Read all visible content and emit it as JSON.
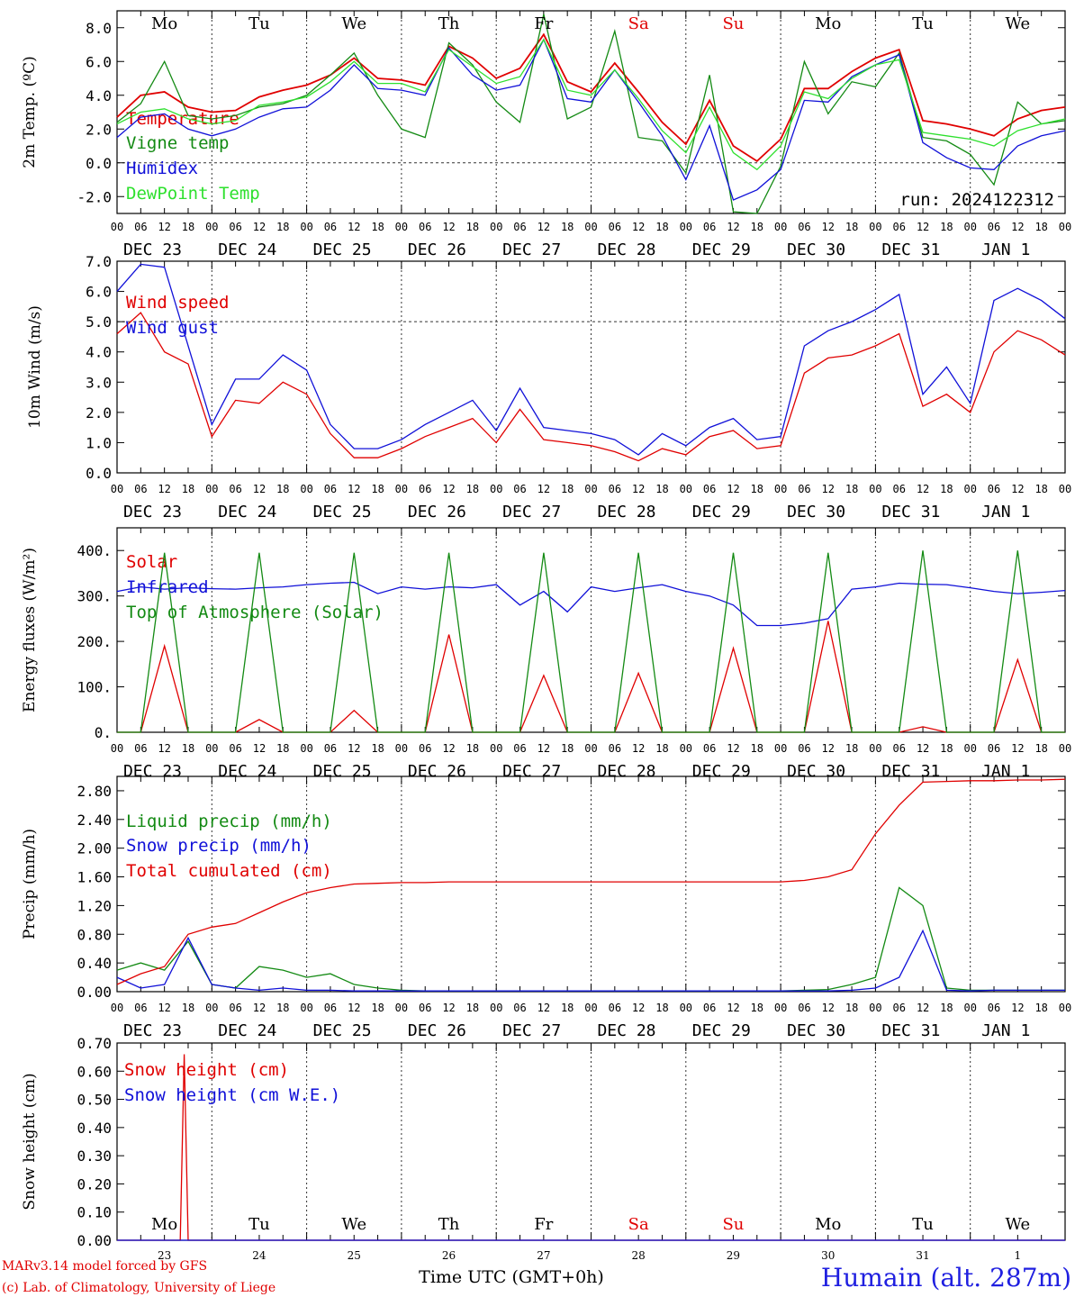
{
  "location": "Humain (alt. 287m)",
  "credit_model": "MARv3.14 model forced by GFS",
  "credit_lab": "(c) Lab. of Climatology, University of Liege",
  "xaxis_title": "Time UTC (GMT+0h)",
  "run_label": "run: 2024122312",
  "hour_ticks": [
    "00",
    "06",
    "12",
    "18"
  ],
  "end_tick": "00",
  "dates": [
    "DEC 23",
    "DEC 24",
    "DEC 25",
    "DEC 26",
    "DEC 27",
    "DEC 28",
    "DEC 29",
    "DEC 30",
    "DEC 31",
    "JAN  1"
  ],
  "bottom_dates": [
    "23",
    "24",
    "25",
    "26",
    "27",
    "28",
    "29",
    "30",
    "31",
    "1"
  ],
  "days": [
    {
      "label": "Mo",
      "color": "#000000"
    },
    {
      "label": "Tu",
      "color": "#000000"
    },
    {
      "label": "We",
      "color": "#000000"
    },
    {
      "label": "Th",
      "color": "#000000"
    },
    {
      "label": "Fr",
      "color": "#000000"
    },
    {
      "label": "Sa",
      "color": "#e00000"
    },
    {
      "label": "Su",
      "color": "#e00000"
    },
    {
      "label": "Mo",
      "color": "#000000"
    },
    {
      "label": "Tu",
      "color": "#000000"
    },
    {
      "label": "We",
      "color": "#000000"
    }
  ],
  "colors": {
    "red": "#e00000",
    "green": "#138a13",
    "blue": "#1010d8",
    "light_green": "#2ee02e"
  },
  "chart_data": [
    {
      "type": "line",
      "ylabel": "2m Temp. (ºC)",
      "ylim": [
        -3,
        9
      ],
      "yticks": [
        -2,
        0,
        2,
        4,
        6,
        8
      ],
      "ytick_labels": [
        "-2.0",
        "0.0",
        "2.0",
        "4.0",
        "6.0",
        "8.0"
      ],
      "hline": 0,
      "x_unit": "hours since DEC 23 00 UTC",
      "x": [
        0,
        6,
        12,
        18,
        24,
        30,
        36,
        42,
        48,
        54,
        60,
        66,
        72,
        78,
        84,
        90,
        96,
        102,
        108,
        114,
        120,
        126,
        132,
        138,
        144,
        150,
        156,
        162,
        168,
        174,
        180,
        186,
        192,
        198,
        204,
        210,
        216,
        222,
        228,
        234,
        240
      ],
      "series": [
        {
          "name": "Temperature",
          "color": "#e00000",
          "values": [
            2.7,
            4.0,
            4.2,
            3.3,
            3.0,
            3.1,
            3.9,
            4.3,
            4.6,
            5.2,
            6.2,
            5.0,
            4.9,
            4.6,
            6.9,
            6.2,
            5.0,
            5.6,
            7.6,
            4.8,
            4.2,
            5.9,
            4.2,
            2.4,
            1.1,
            3.7,
            1.0,
            0.1,
            1.4,
            4.4,
            4.4,
            5.4,
            6.2,
            6.7,
            2.5,
            2.3,
            2.0,
            1.6,
            2.6,
            3.1,
            3.3
          ]
        },
        {
          "name": "Vigne temp",
          "color": "#138a13",
          "values": [
            2.4,
            3.5,
            6.0,
            2.8,
            2.6,
            2.8,
            3.3,
            3.5,
            4.0,
            5.2,
            6.5,
            4.0,
            2.0,
            1.5,
            7.1,
            5.8,
            3.6,
            2.4,
            8.8,
            2.6,
            3.3,
            7.8,
            1.5,
            1.3,
            -0.6,
            5.2,
            -2.9,
            -3.2,
            -0.2,
            6.0,
            2.9,
            4.8,
            4.5,
            6.5,
            1.5,
            1.3,
            0.5,
            -1.3,
            3.6,
            2.3,
            2.5
          ]
        },
        {
          "name": "Humidex",
          "color": "#1010d8",
          "values": [
            1.5,
            2.7,
            2.9,
            2.0,
            1.6,
            2.0,
            2.7,
            3.2,
            3.3,
            4.3,
            5.8,
            4.4,
            4.3,
            4.0,
            6.8,
            5.2,
            4.3,
            4.6,
            7.3,
            3.8,
            3.6,
            5.5,
            3.6,
            1.6,
            -1.0,
            2.2,
            -2.2,
            -1.6,
            -0.4,
            3.7,
            3.6,
            5.1,
            5.8,
            6.4,
            1.2,
            0.3,
            -0.3,
            -0.4,
            1.0,
            1.6,
            1.9
          ]
        },
        {
          "name": "DewPoint Temp",
          "color": "#2ee02e",
          "values": [
            2.3,
            3.0,
            3.2,
            2.6,
            2.3,
            2.5,
            3.4,
            3.6,
            3.9,
            4.8,
            6.0,
            4.7,
            4.7,
            4.2,
            6.7,
            5.7,
            4.7,
            5.1,
            7.3,
            4.3,
            4.0,
            5.5,
            3.8,
            1.9,
            0.6,
            3.3,
            0.6,
            -0.4,
            1.0,
            4.2,
            3.8,
            5.0,
            5.8,
            6.1,
            1.8,
            1.6,
            1.4,
            1.0,
            1.9,
            2.3,
            2.6
          ]
        }
      ]
    },
    {
      "type": "line",
      "ylabel": "10m Wind (m/s)",
      "ylim": [
        0,
        7
      ],
      "yticks": [
        0,
        1,
        2,
        3,
        4,
        5,
        6,
        7
      ],
      "ytick_labels": [
        "0.0",
        "1.0",
        "2.0",
        "3.0",
        "4.0",
        "5.0",
        "6.0",
        "7.0"
      ],
      "hline": 5,
      "x": [
        0,
        6,
        12,
        18,
        24,
        30,
        36,
        42,
        48,
        54,
        60,
        66,
        72,
        78,
        84,
        90,
        96,
        102,
        108,
        114,
        120,
        126,
        132,
        138,
        144,
        150,
        156,
        162,
        168,
        174,
        180,
        186,
        192,
        198,
        204,
        210,
        216,
        222,
        228,
        234,
        240
      ],
      "series": [
        {
          "name": "Wind speed",
          "color": "#e00000",
          "values": [
            4.6,
            5.3,
            4.0,
            3.6,
            1.2,
            2.4,
            2.3,
            3.0,
            2.6,
            1.3,
            0.5,
            0.5,
            0.8,
            1.2,
            1.5,
            1.8,
            1.0,
            2.1,
            1.1,
            1.0,
            0.9,
            0.7,
            0.4,
            0.8,
            0.6,
            1.2,
            1.4,
            0.8,
            0.9,
            3.3,
            3.8,
            3.9,
            4.2,
            4.6,
            2.2,
            2.6,
            2.0,
            4.0,
            4.7,
            4.4,
            3.9
          ]
        },
        {
          "name": "Wind gust",
          "color": "#1010d8",
          "values": [
            6.0,
            6.9,
            6.8,
            4.2,
            1.6,
            3.1,
            3.1,
            3.9,
            3.4,
            1.6,
            0.8,
            0.8,
            1.1,
            1.6,
            2.0,
            2.4,
            1.4,
            2.8,
            1.5,
            1.4,
            1.3,
            1.1,
            0.6,
            1.3,
            0.9,
            1.5,
            1.8,
            1.1,
            1.2,
            4.2,
            4.7,
            5.0,
            5.4,
            5.9,
            2.6,
            3.5,
            2.3,
            5.7,
            6.1,
            5.7,
            5.1
          ]
        }
      ]
    },
    {
      "type": "line",
      "ylabel": "Energy fluxes (W/m²)",
      "ylim": [
        0,
        450
      ],
      "yticks": [
        0,
        100,
        200,
        300,
        400
      ],
      "ytick_labels": [
        "0.",
        "100.",
        "200.",
        "300.",
        "400."
      ],
      "x": [
        0,
        6,
        12,
        18,
        24,
        30,
        36,
        42,
        48,
        54,
        60,
        66,
        72,
        78,
        84,
        90,
        96,
        102,
        108,
        114,
        120,
        126,
        132,
        138,
        144,
        150,
        156,
        162,
        168,
        174,
        180,
        186,
        192,
        198,
        204,
        210,
        216,
        222,
        228,
        234,
        240
      ],
      "series": [
        {
          "name": "Solar",
          "color": "#e00000",
          "values": [
            0,
            0,
            190,
            0,
            0,
            0,
            28,
            0,
            0,
            0,
            48,
            0,
            0,
            0,
            215,
            0,
            0,
            0,
            125,
            0,
            0,
            0,
            130,
            0,
            0,
            0,
            185,
            0,
            0,
            0,
            245,
            0,
            0,
            0,
            12,
            0,
            0,
            0,
            160,
            0,
            0
          ]
        },
        {
          "name": "Infrared",
          "color": "#1010d8",
          "values": [
            310,
            320,
            315,
            318,
            316,
            315,
            318,
            320,
            325,
            328,
            330,
            305,
            320,
            315,
            320,
            318,
            325,
            280,
            310,
            265,
            320,
            310,
            318,
            325,
            310,
            300,
            280,
            235,
            235,
            240,
            250,
            315,
            320,
            328,
            326,
            325,
            318,
            310,
            305,
            308,
            312
          ]
        },
        {
          "name": "Top of Atmosphere (Solar)",
          "color": "#138a13",
          "values": [
            0,
            0,
            395,
            0,
            0,
            0,
            395,
            0,
            0,
            0,
            395,
            0,
            0,
            0,
            395,
            0,
            0,
            0,
            395,
            0,
            0,
            0,
            395,
            0,
            0,
            0,
            395,
            0,
            0,
            0,
            395,
            0,
            0,
            0,
            400,
            0,
            0,
            0,
            400,
            0,
            0
          ]
        }
      ]
    },
    {
      "type": "line",
      "ylabel": "Precip (mm/h)",
      "ylim": [
        0,
        3.0
      ],
      "yticks": [
        0,
        0.4,
        0.8,
        1.2,
        1.6,
        2.0,
        2.4,
        2.8
      ],
      "ytick_labels": [
        "0.00",
        "0.40",
        "0.80",
        "1.20",
        "1.60",
        "2.00",
        "2.40",
        "2.80"
      ],
      "x": [
        0,
        6,
        12,
        18,
        24,
        30,
        36,
        42,
        48,
        54,
        60,
        66,
        72,
        78,
        84,
        90,
        96,
        102,
        108,
        114,
        120,
        126,
        132,
        138,
        144,
        150,
        156,
        162,
        168,
        174,
        180,
        186,
        192,
        198,
        204,
        210,
        216,
        222,
        228,
        234,
        240
      ],
      "series": [
        {
          "name": "Liquid precip (mm/h)",
          "color": "#138a13",
          "values": [
            0.3,
            0.4,
            0.3,
            0.7,
            0.1,
            0.05,
            0.35,
            0.3,
            0.2,
            0.25,
            0.1,
            0.05,
            0.02,
            0.01,
            0.01,
            0.01,
            0.01,
            0.01,
            0.01,
            0.01,
            0.01,
            0.01,
            0.01,
            0.01,
            0.01,
            0.01,
            0.01,
            0.01,
            0.01,
            0.02,
            0.03,
            0.1,
            0.2,
            1.45,
            1.2,
            0.05,
            0.02,
            0.02,
            0.02,
            0.02,
            0.02
          ]
        },
        {
          "name": "Snow precip (mm/h)",
          "color": "#1010d8",
          "values": [
            0.2,
            0.05,
            0.1,
            0.75,
            0.1,
            0.05,
            0.02,
            0.05,
            0.02,
            0.02,
            0.01,
            0.01,
            0.01,
            0.01,
            0.01,
            0.01,
            0.01,
            0.01,
            0.01,
            0.01,
            0.01,
            0.01,
            0.01,
            0.01,
            0.01,
            0.01,
            0.01,
            0.01,
            0.01,
            0.01,
            0.01,
            0.02,
            0.05,
            0.2,
            0.85,
            0.02,
            0.01,
            0.02,
            0.02,
            0.02,
            0.02
          ]
        },
        {
          "name": "Total cumulated (cm)",
          "color": "#e00000",
          "values": [
            0.1,
            0.25,
            0.35,
            0.8,
            0.9,
            0.95,
            1.1,
            1.25,
            1.38,
            1.45,
            1.5,
            1.51,
            1.52,
            1.52,
            1.53,
            1.53,
            1.53,
            1.53,
            1.53,
            1.53,
            1.53,
            1.53,
            1.53,
            1.53,
            1.53,
            1.53,
            1.53,
            1.53,
            1.53,
            1.55,
            1.6,
            1.7,
            2.2,
            2.6,
            2.92,
            2.93,
            2.94,
            2.94,
            2.95,
            2.95,
            2.96
          ]
        }
      ]
    },
    {
      "type": "line",
      "ylabel": "Snow height (cm)",
      "ylim": [
        0,
        0.7
      ],
      "yticks": [
        0,
        0.1,
        0.2,
        0.3,
        0.4,
        0.5,
        0.6,
        0.7
      ],
      "ytick_labels": [
        "0.00",
        "0.10",
        "0.20",
        "0.30",
        "0.40",
        "0.50",
        "0.60",
        "0.70"
      ],
      "x": [
        0,
        16,
        17,
        18,
        240
      ],
      "series": [
        {
          "name": "Snow height (cm)",
          "color": "#e00000",
          "values": [
            0,
            0,
            0.66,
            0,
            0
          ]
        },
        {
          "name": "Snow height (cm W.E.)",
          "color": "#1010d8",
          "values": [
            0,
            0,
            0,
            0,
            0
          ]
        }
      ]
    }
  ]
}
